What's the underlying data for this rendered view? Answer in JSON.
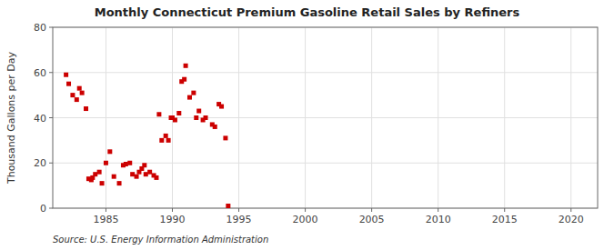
{
  "chart_data": {
    "type": "scatter",
    "title": "Monthly Connecticut Premium Gasoline Retail Sales by Refiners",
    "ylabel": "Thousand Gallons per Day",
    "annotations": [
      "Source: U.S. Energy Information Administration"
    ],
    "color": "#cc0000",
    "marker": "square",
    "grid": true,
    "xlim": [
      1981,
      2022
    ],
    "ylim": [
      0,
      80
    ],
    "xticks": [
      1985,
      1990,
      1995,
      2000,
      2005,
      2010,
      2015,
      2020
    ],
    "yticks": [
      0,
      20,
      40,
      60,
      80
    ],
    "x": [
      1982.0,
      1982.2,
      1982.5,
      1982.8,
      1983.0,
      1983.2,
      1983.5,
      1983.7,
      1983.9,
      1984.0,
      1984.2,
      1984.5,
      1984.7,
      1985.0,
      1985.3,
      1985.6,
      1986.0,
      1986.3,
      1986.5,
      1986.8,
      1987.0,
      1987.3,
      1987.5,
      1987.7,
      1987.9,
      1988.0,
      1988.3,
      1988.6,
      1988.8,
      1989.0,
      1989.2,
      1989.5,
      1989.7,
      1989.9,
      1990.0,
      1990.2,
      1990.5,
      1990.7,
      1990.9,
      1991.0,
      1991.3,
      1991.6,
      1991.8,
      1992.0,
      1992.3,
      1992.5,
      1993.0,
      1993.2,
      1993.5,
      1993.7,
      1994.0,
      1994.2
    ],
    "values": [
      59.0,
      55.0,
      50.0,
      48.0,
      53.0,
      51.0,
      44.0,
      13.0,
      12.5,
      13.5,
      15.0,
      16.0,
      11.0,
      20.0,
      25.0,
      14.0,
      11.0,
      19.0,
      19.5,
      20.0,
      15.0,
      14.0,
      16.0,
      17.5,
      19.0,
      15.0,
      16.0,
      14.5,
      13.5,
      41.5,
      30.0,
      32.0,
      30.0,
      40.0,
      40.0,
      39.0,
      42.0,
      56.0,
      57.0,
      63.0,
      49.0,
      51.0,
      40.0,
      43.0,
      39.0,
      40.0,
      37.0,
      36.0,
      46.0,
      45.0,
      31.0,
      1.0
    ]
  }
}
